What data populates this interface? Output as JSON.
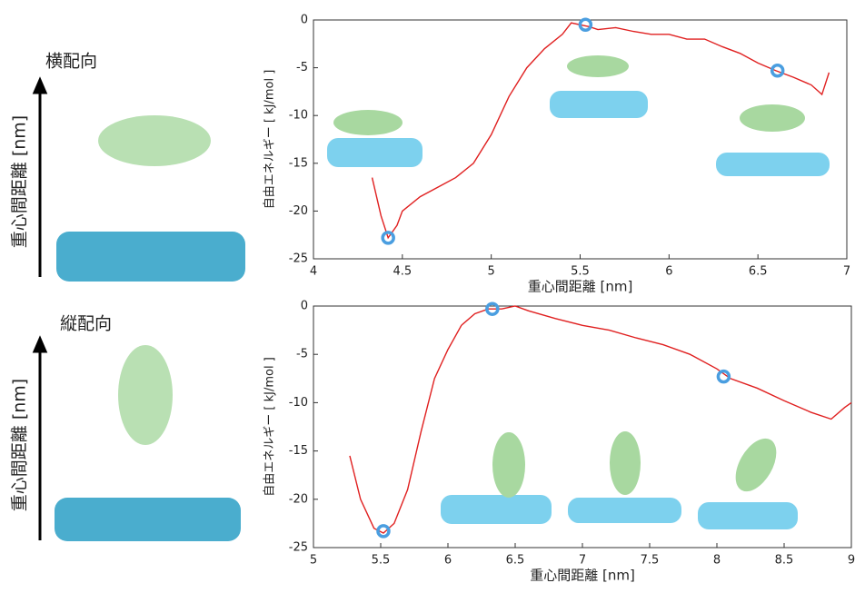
{
  "chart_data": [
    {
      "type": "line",
      "x_label": "重心間距離 [nm]",
      "y_label": "自由エネルギー [ kJ/mol ]",
      "x": [
        4.33,
        4.38,
        4.42,
        4.47,
        4.5,
        4.6,
        4.7,
        4.8,
        4.9,
        5.0,
        5.1,
        5.2,
        5.3,
        5.4,
        5.45,
        5.5,
        5.55,
        5.6,
        5.7,
        5.8,
        5.9,
        6.0,
        6.1,
        6.2,
        6.3,
        6.4,
        6.5,
        6.6,
        6.7,
        6.8,
        6.86,
        6.9
      ],
      "series": [
        {
          "color": "#e02020",
          "values": [
            -16.5,
            -20.5,
            -22.8,
            -21.5,
            -20,
            -18.5,
            -17.5,
            -16.5,
            -15,
            -12,
            -8,
            -5,
            -3,
            -1.5,
            -0.3,
            -0.5,
            -0.7,
            -1,
            -0.8,
            -1.2,
            -1.5,
            -1.5,
            -2,
            -2,
            -2.8,
            -3.5,
            -4.5,
            -5.3,
            -6,
            -6.8,
            -7.8,
            -5.5
          ]
        }
      ],
      "markers": {
        "color": "#4a9ee0",
        "x": [
          4.42,
          5.53,
          6.61
        ],
        "values": [
          -22.8,
          -0.5,
          -5.3
        ]
      },
      "xlim": [
        4,
        7
      ],
      "xticks": [
        4,
        4.5,
        5,
        5.5,
        6,
        6.5,
        7
      ],
      "ylim": [
        -25,
        0
      ],
      "yticks": [
        -25,
        -20,
        -15,
        -10,
        -5,
        0
      ]
    },
    {
      "type": "line",
      "x_label": "重心間距離 [nm]",
      "y_label": "自由エネルギー [ kJ/mol ]",
      "x": [
        5.27,
        5.35,
        5.45,
        5.52,
        5.6,
        5.7,
        5.8,
        5.9,
        6.0,
        6.1,
        6.2,
        6.3,
        6.4,
        6.5,
        6.6,
        6.8,
        7.0,
        7.2,
        7.4,
        7.6,
        7.8,
        8.0,
        8.1,
        8.3,
        8.5,
        8.7,
        8.85,
        8.95,
        9.0
      ],
      "series": [
        {
          "color": "#e02020",
          "values": [
            -15.5,
            -20,
            -23,
            -23.5,
            -22.5,
            -19,
            -13,
            -7.5,
            -4.5,
            -2,
            -0.8,
            -0.3,
            -0.3,
            0,
            -0.5,
            -1.3,
            -2,
            -2.5,
            -3.3,
            -4,
            -5,
            -6.5,
            -7.5,
            -8.5,
            -9.8,
            -11,
            -11.7,
            -10.5,
            -10
          ]
        }
      ],
      "markers": {
        "color": "#4a9ee0",
        "x": [
          5.52,
          6.33,
          8.05
        ],
        "values": [
          -23.3,
          -0.3,
          -7.3
        ]
      },
      "xlim": [
        5,
        9
      ],
      "xticks": [
        5,
        5.5,
        6,
        6.5,
        7,
        7.5,
        8,
        8.5,
        9
      ],
      "ylim": [
        -25,
        0
      ],
      "yticks": [
        -25,
        -20,
        -15,
        -10,
        -5,
        0
      ]
    }
  ],
  "side_panels": [
    {
      "title": "横配向",
      "axis_label": "重心間距離 [nm]"
    },
    {
      "title": "縦配向",
      "axis_label": "重心間距離 [nm]"
    }
  ]
}
